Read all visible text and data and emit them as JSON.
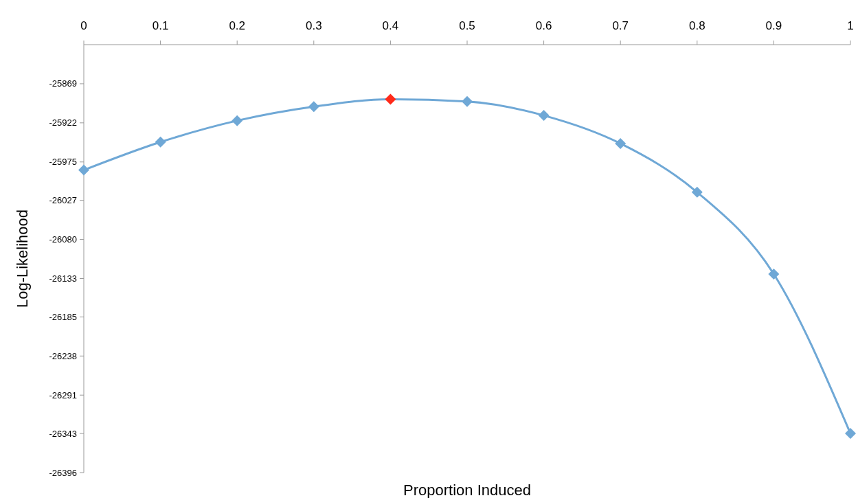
{
  "chart_data": {
    "type": "line",
    "xlabel": "Proportion Induced",
    "ylabel": "Log-Likelihood",
    "x": [
      0,
      0.1,
      0.2,
      0.3,
      0.4,
      0.5,
      0.6,
      0.7,
      0.8,
      0.9,
      1
    ],
    "series": [
      {
        "color": "#6fa8d6",
        "colors": [
          "#6fa8d6",
          "#6fa8d6",
          "#6fa8d6",
          "#6fa8d6",
          "#ff2a1a",
          "#6fa8d6",
          "#6fa8d6",
          "#6fa8d6",
          "#6fa8d6",
          "#6fa8d6",
          "#6fa8d6"
        ],
        "values": [
          -25986,
          -25948,
          -25919,
          -25900,
          -25890,
          -25893,
          -25912,
          -25950,
          -26016,
          -26127,
          -26343
        ]
      }
    ],
    "xlim": [
      0,
      1
    ],
    "xticks": [
      0,
      0.1,
      0.2,
      0.3,
      0.4,
      0.5,
      0.6,
      0.7,
      0.8,
      0.9,
      1
    ],
    "ylim": [
      -26396,
      -25816
    ],
    "yticks": [
      -25869,
      -25922,
      -25975,
      -26027,
      -26080,
      -26133,
      -26185,
      -26238,
      -26291,
      -26343,
      -26396
    ],
    "marker": "diamond",
    "grid": false
  }
}
